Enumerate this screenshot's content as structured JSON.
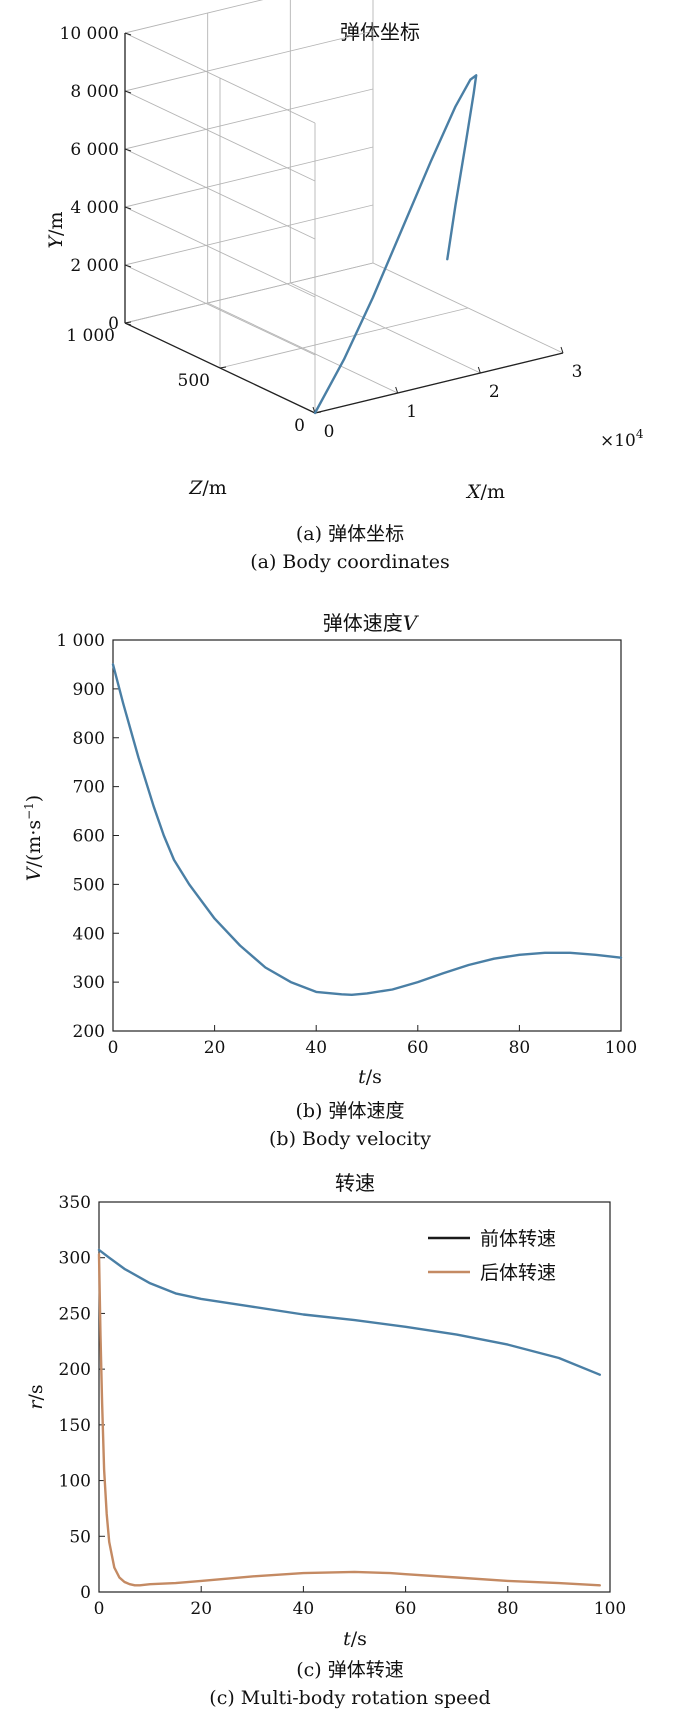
{
  "chart_data": [
    {
      "type": "line",
      "panel_id": "a",
      "title": "弹体坐标",
      "caption_cn": "(a) 弹体坐标",
      "caption_en": "(a) Body coordinates",
      "xlabel": "X/m",
      "ylabel": "Y/m",
      "zlabel": "Z/m",
      "x_ticks": [
        "0",
        "1",
        "2",
        "3"
      ],
      "x_multiplier": "×10",
      "x_multiplier_exp": "4",
      "y_ticks": [
        "0",
        "2 000",
        "4 000",
        "6 000",
        "8 000",
        "10 000"
      ],
      "z_ticks": [
        "0",
        "500",
        "1 000"
      ],
      "xlim": [
        0,
        30000
      ],
      "ylim": [
        0,
        10000
      ],
      "zlim": [
        0,
        1000
      ],
      "grid": true,
      "series": [
        {
          "color": "#4a7fa5",
          "x": [
            0,
            3500,
            7000,
            10500,
            14000,
            17000,
            18800,
            19500,
            19200,
            18200,
            17000,
            16000
          ],
          "y": [
            0,
            1600,
            3500,
            5600,
            7700,
            9400,
            10200,
            10300,
            9700,
            8000,
            6000,
            4200
          ],
          "z": [
            0,
            0,
            0,
            0,
            0,
            0,
            0,
            0,
            0,
            0,
            0,
            0
          ]
        }
      ]
    },
    {
      "type": "line",
      "panel_id": "b",
      "title": "弹体速度",
      "title_var": "V",
      "caption_cn": "(b) 弹体速度",
      "caption_en": "(b) Body velocity",
      "xlabel": "t/s",
      "ylabel": "V/(m·s⁻¹)",
      "x_ticks": [
        "0",
        "20",
        "40",
        "60",
        "80",
        "100"
      ],
      "y_ticks": [
        "200",
        "300",
        "400",
        "500",
        "600",
        "700",
        "800",
        "900",
        "1 000"
      ],
      "xlim": [
        0,
        100
      ],
      "ylim": [
        200,
        1000
      ],
      "grid": false,
      "series": [
        {
          "color": "#4a7fa5",
          "x": [
            0,
            2,
            5,
            8,
            10,
            12,
            15,
            20,
            25,
            30,
            35,
            40,
            45,
            47,
            50,
            55,
            60,
            65,
            70,
            75,
            80,
            85,
            90,
            95,
            100
          ],
          "y": [
            950,
            870,
            760,
            660,
            600,
            550,
            500,
            430,
            375,
            330,
            300,
            280,
            275,
            274,
            277,
            285,
            300,
            318,
            335,
            348,
            356,
            360,
            360,
            356,
            350
          ]
        }
      ]
    },
    {
      "type": "line",
      "panel_id": "c",
      "title": "转速",
      "caption_cn": "(c) 弹体转速",
      "caption_en": "(c) Multi-body rotation speed",
      "xlabel": "t/s",
      "ylabel": "r/s",
      "x_ticks": [
        "0",
        "20",
        "40",
        "60",
        "80",
        "100"
      ],
      "y_ticks": [
        "0",
        "50",
        "100",
        "150",
        "200",
        "250",
        "300",
        "350"
      ],
      "xlim": [
        0,
        100
      ],
      "ylim": [
        0,
        350
      ],
      "grid": false,
      "legend_position": "top-right",
      "series": [
        {
          "name": "前体转速",
          "color": "#4a7fa5",
          "legend_color": "#1a1a1a",
          "x": [
            0,
            2,
            5,
            10,
            15,
            20,
            30,
            40,
            50,
            60,
            70,
            80,
            90,
            98
          ],
          "y": [
            307,
            300,
            290,
            277,
            268,
            263,
            256,
            249,
            244,
            238,
            231,
            222,
            210,
            195
          ]
        },
        {
          "name": "后体转速",
          "color": "#c48a63",
          "legend_color": "#c48a63",
          "x": [
            0,
            0.3,
            0.6,
            1,
            1.5,
            2,
            3,
            4,
            5,
            6,
            7,
            8,
            10,
            15,
            20,
            30,
            40,
            50,
            57,
            60,
            70,
            80,
            90,
            98
          ],
          "y": [
            303,
            230,
            170,
            110,
            70,
            45,
            22,
            13,
            9,
            7,
            6,
            6,
            7,
            8,
            10,
            14,
            17,
            18,
            17,
            16,
            13,
            10,
            8,
            6
          ]
        }
      ]
    }
  ]
}
